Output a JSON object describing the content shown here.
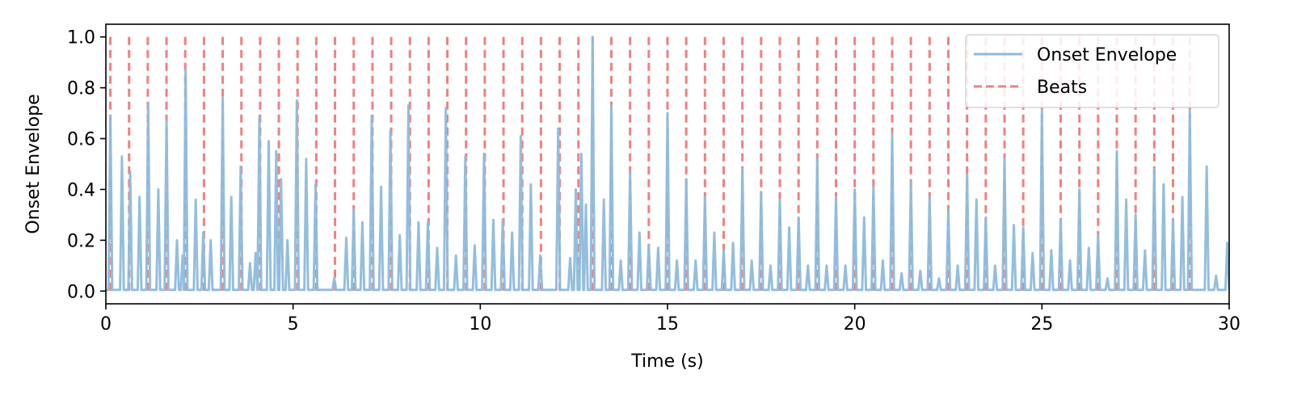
{
  "chart_data": {
    "type": "line",
    "xlabel": "Time (s)",
    "ylabel": "Onset Envelope",
    "xlim": [
      0,
      30
    ],
    "ylim": [
      -0.05,
      1.05
    ],
    "xticks": [
      0,
      5,
      10,
      15,
      20,
      25,
      30
    ],
    "xtick_labels": [
      "0",
      "5",
      "10",
      "15",
      "20",
      "25",
      "30"
    ],
    "yticks": [
      0.0,
      0.2,
      0.4,
      0.6,
      0.8,
      1.0
    ],
    "ytick_labels": [
      "0.0",
      "0.2",
      "0.4",
      "0.6",
      "0.8",
      "1.0"
    ],
    "grid": false,
    "legend_position": "top-right",
    "series": [
      {
        "name": "Onset Envelope",
        "style": "line",
        "color": "#8dbadc",
        "peaks": [
          [
            0.12,
            0.69
          ],
          [
            0.43,
            0.53
          ],
          [
            0.65,
            0.47
          ],
          [
            0.9,
            0.37
          ],
          [
            1.13,
            0.74
          ],
          [
            1.4,
            0.4
          ],
          [
            1.62,
            0.67
          ],
          [
            1.9,
            0.2
          ],
          [
            2.05,
            0.14
          ],
          [
            2.13,
            0.87
          ],
          [
            2.4,
            0.36
          ],
          [
            2.6,
            0.23
          ],
          [
            2.8,
            0.2
          ],
          [
            3.12,
            0.76
          ],
          [
            3.35,
            0.37
          ],
          [
            3.6,
            0.49
          ],
          [
            3.85,
            0.11
          ],
          [
            4.0,
            0.15
          ],
          [
            4.1,
            0.69
          ],
          [
            4.35,
            0.59
          ],
          [
            4.55,
            0.55
          ],
          [
            4.68,
            0.44
          ],
          [
            4.85,
            0.2
          ],
          [
            5.1,
            0.75
          ],
          [
            5.35,
            0.52
          ],
          [
            5.6,
            0.42
          ],
          [
            6.1,
            0.05
          ],
          [
            6.42,
            0.21
          ],
          [
            6.62,
            0.32
          ],
          [
            6.85,
            0.27
          ],
          [
            7.1,
            0.69
          ],
          [
            7.35,
            0.41
          ],
          [
            7.6,
            0.63
          ],
          [
            7.85,
            0.22
          ],
          [
            8.08,
            0.73
          ],
          [
            8.35,
            0.27
          ],
          [
            8.6,
            0.27
          ],
          [
            8.85,
            0.17
          ],
          [
            9.08,
            0.72
          ],
          [
            9.35,
            0.14
          ],
          [
            9.6,
            0.53
          ],
          [
            9.85,
            0.18
          ],
          [
            10.1,
            0.54
          ],
          [
            10.35,
            0.28
          ],
          [
            10.6,
            0.28
          ],
          [
            10.85,
            0.23
          ],
          [
            11.08,
            0.61
          ],
          [
            11.35,
            0.42
          ],
          [
            11.6,
            0.14
          ],
          [
            12.08,
            0.64
          ],
          [
            12.4,
            0.13
          ],
          [
            12.55,
            0.4
          ],
          [
            12.7,
            0.54
          ],
          [
            12.82,
            0.34
          ],
          [
            13.0,
            1.0
          ],
          [
            13.3,
            0.36
          ],
          [
            13.5,
            0.73
          ],
          [
            13.75,
            0.12
          ],
          [
            14.0,
            0.47
          ],
          [
            14.25,
            0.23
          ],
          [
            14.5,
            0.18
          ],
          [
            14.75,
            0.17
          ],
          [
            15.0,
            0.7
          ],
          [
            15.25,
            0.12
          ],
          [
            15.5,
            0.44
          ],
          [
            15.75,
            0.12
          ],
          [
            16.0,
            0.37
          ],
          [
            16.25,
            0.23
          ],
          [
            16.5,
            0.16
          ],
          [
            16.75,
            0.19
          ],
          [
            17.0,
            0.48
          ],
          [
            17.25,
            0.12
          ],
          [
            17.5,
            0.39
          ],
          [
            17.75,
            0.1
          ],
          [
            18.0,
            0.36
          ],
          [
            18.25,
            0.25
          ],
          [
            18.5,
            0.29
          ],
          [
            18.75,
            0.1
          ],
          [
            19.0,
            0.52
          ],
          [
            19.25,
            0.1
          ],
          [
            19.5,
            0.37
          ],
          [
            19.75,
            0.1
          ],
          [
            20.0,
            0.4
          ],
          [
            20.25,
            0.29
          ],
          [
            20.5,
            0.41
          ],
          [
            20.75,
            0.12
          ],
          [
            21.0,
            0.62
          ],
          [
            21.25,
            0.07
          ],
          [
            21.5,
            0.43
          ],
          [
            21.75,
            0.08
          ],
          [
            22.0,
            0.37
          ],
          [
            22.25,
            0.05
          ],
          [
            22.5,
            0.32
          ],
          [
            22.75,
            0.1
          ],
          [
            23.0,
            0.46
          ],
          [
            23.25,
            0.36
          ],
          [
            23.5,
            0.29
          ],
          [
            23.75,
            0.1
          ],
          [
            24.0,
            0.52
          ],
          [
            24.25,
            0.26
          ],
          [
            24.5,
            0.25
          ],
          [
            24.75,
            0.15
          ],
          [
            25.0,
            0.71
          ],
          [
            25.25,
            0.16
          ],
          [
            25.5,
            0.28
          ],
          [
            25.75,
            0.12
          ],
          [
            26.0,
            0.4
          ],
          [
            26.25,
            0.17
          ],
          [
            26.5,
            0.22
          ],
          [
            26.75,
            0.05
          ],
          [
            27.0,
            0.55
          ],
          [
            27.25,
            0.36
          ],
          [
            27.5,
            0.3
          ],
          [
            27.75,
            0.16
          ],
          [
            28.0,
            0.48
          ],
          [
            28.25,
            0.42
          ],
          [
            28.5,
            0.28
          ],
          [
            28.75,
            0.37
          ],
          [
            28.95,
            0.71
          ],
          [
            29.4,
            0.49
          ],
          [
            29.65,
            0.06
          ],
          [
            29.95,
            0.19
          ]
        ]
      },
      {
        "name": "Beats",
        "style": "dashed-vertical-lines",
        "color": "#f08080",
        "x": [
          0.12,
          0.62,
          1.12,
          1.62,
          2.12,
          2.62,
          3.12,
          3.62,
          4.12,
          4.62,
          5.12,
          5.62,
          6.12,
          6.62,
          7.12,
          7.62,
          8.12,
          8.62,
          9.12,
          9.62,
          10.12,
          10.62,
          11.12,
          11.62,
          12.12,
          12.62,
          13.0,
          13.5,
          14.0,
          14.5,
          15.0,
          15.5,
          16.0,
          16.5,
          17.0,
          17.5,
          18.0,
          18.5,
          19.0,
          19.5,
          20.0,
          20.5,
          21.0,
          21.5,
          22.0,
          22.5,
          23.0,
          23.5,
          24.0,
          24.5,
          25.0,
          25.5,
          26.0,
          26.5,
          27.0,
          27.5,
          28.0,
          28.5,
          28.95
        ]
      }
    ]
  }
}
